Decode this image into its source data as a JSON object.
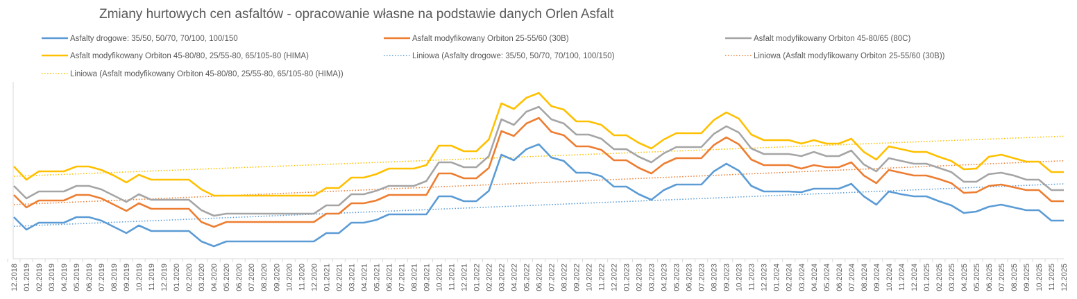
{
  "chart_data": {
    "type": "line",
    "title": "Zmiany hurtowych cen asfaltów - opracowanie własne na podstawie danych Orlen Asfalt",
    "xlabel": "",
    "ylabel": "",
    "y_unit_note": "relative price level (no y-axis shown)",
    "grid": false,
    "legend_placement": "top",
    "categories": [
      "12.2018",
      "01.2019",
      "02.2019",
      "03.2019",
      "04.2019",
      "05.2019",
      "06.2019",
      "07.2019",
      "08.2019",
      "09.2019",
      "10.2019",
      "11.2019",
      "12.2019",
      "01.2020",
      "02.2020",
      "03.2020",
      "04.2020",
      "05.2020",
      "06.2020",
      "07.2020",
      "08.2020",
      "09.2020",
      "10.2020",
      "11.2020",
      "12.2020",
      "01.2021",
      "02.2021",
      "03.2021",
      "04.2021",
      "05.2021",
      "06.2021",
      "07.2021",
      "08.2021",
      "09.2021",
      "10.2021",
      "11.2021",
      "12.2021",
      "01.2022",
      "02.2022",
      "03.2022",
      "04.2022",
      "05.2022",
      "06.2022",
      "07.2022",
      "08.2022",
      "09.2022",
      "10.2022",
      "11.2022",
      "12.2022",
      "01.2023",
      "02.2023",
      "03.2023",
      "04.2023",
      "05.2023",
      "06.2023",
      "07.2023",
      "08.2023",
      "09.2023",
      "10.2023",
      "11.2023",
      "12.2023",
      "01.2024",
      "02.2024",
      "03.2024",
      "04.2024",
      "05.2024",
      "06.2024",
      "07.2024",
      "08.2024",
      "09.2024",
      "10.2024",
      "11.2024",
      "12.2024",
      "01.2025",
      "02.2025",
      "03.2025",
      "04.2025",
      "05.2025",
      "06.2025",
      "07.2025",
      "08.2025",
      "09.2025",
      "10.2025",
      "11.2025",
      "12.2025"
    ],
    "series": [
      {
        "name": "Asfalty drogowe: 35/50, 50/70, 70/100, 100/150",
        "color": "#5B9BD5",
        "style": "solid",
        "y": [
          313,
          331,
          321,
          321,
          321,
          313,
          313,
          318,
          327,
          336,
          325,
          333,
          333,
          333,
          333,
          348,
          355,
          348,
          348,
          348,
          348,
          348,
          348,
          348,
          348,
          336,
          336,
          321,
          321,
          317,
          309,
          309,
          309,
          309,
          283,
          283,
          290,
          290,
          275,
          223,
          231,
          215,
          208,
          227,
          232,
          249,
          249,
          254,
          269,
          269,
          280,
          288,
          274,
          266,
          266,
          266,
          247,
          236,
          246,
          268,
          276,
          276,
          276,
          277,
          272,
          272,
          272,
          265,
          283,
          295,
          276,
          280,
          283,
          283,
          290,
          296,
          307,
          305,
          298,
          295,
          299,
          303,
          303,
          318,
          318
        ]
      },
      {
        "name": "Asfalt modyfikowany Orbiton 25-55/60 (30B)",
        "color": "#ED7D31",
        "style": "solid",
        "y": [
          281,
          299,
          289,
          289,
          289,
          281,
          281,
          286,
          295,
          304,
          293,
          301,
          301,
          301,
          301,
          320,
          327,
          320,
          320,
          320,
          320,
          320,
          320,
          320,
          320,
          308,
          308,
          293,
          293,
          289,
          281,
          281,
          281,
          281,
          250,
          250,
          257,
          257,
          242,
          189,
          196,
          178,
          170,
          190,
          195,
          211,
          211,
          216,
          231,
          231,
          242,
          250,
          236,
          228,
          228,
          228,
          209,
          198,
          208,
          230,
          238,
          238,
          238,
          243,
          238,
          241,
          241,
          234,
          253,
          264,
          245,
          249,
          253,
          253,
          258,
          264,
          278,
          277,
          268,
          266,
          270,
          274,
          274,
          290,
          290
        ]
      },
      {
        "name": "Asfalt modyfikowany Orbiton 45-80/65 (80C)",
        "color": "#A5A5A5",
        "style": "solid",
        "y": [
          268,
          286,
          276,
          276,
          276,
          268,
          268,
          273,
          282,
          291,
          280,
          288,
          288,
          288,
          288,
          303,
          311,
          308,
          308,
          308,
          308,
          308,
          308,
          308,
          308,
          296,
          296,
          280,
          280,
          275,
          268,
          268,
          268,
          261,
          234,
          234,
          241,
          241,
          225,
          172,
          180,
          161,
          154,
          172,
          178,
          194,
          194,
          200,
          215,
          215,
          226,
          234,
          221,
          212,
          212,
          212,
          193,
          182,
          191,
          214,
          222,
          222,
          222,
          225,
          219,
          225,
          225,
          217,
          237,
          247,
          228,
          232,
          236,
          236,
          242,
          248,
          262,
          262,
          251,
          249,
          253,
          259,
          259,
          274,
          274
        ]
      },
      {
        "name": "Asfalt modyfikowany Orbiton 45-80/80, 25/55-80, 65/105-80 (HIMA)",
        "color": "#FFC000",
        "style": "solid",
        "y": [
          240,
          259,
          247,
          247,
          247,
          240,
          240,
          245,
          253,
          263,
          252,
          259,
          259,
          259,
          259,
          273,
          282,
          282,
          282,
          282,
          282,
          282,
          282,
          282,
          282,
          271,
          271,
          256,
          256,
          251,
          243,
          243,
          243,
          238,
          210,
          210,
          218,
          218,
          201,
          149,
          157,
          141,
          134,
          153,
          158,
          175,
          175,
          180,
          195,
          195,
          206,
          214,
          201,
          192,
          192,
          192,
          173,
          162,
          171,
          194,
          202,
          202,
          202,
          207,
          202,
          207,
          207,
          200,
          219,
          230,
          211,
          215,
          219,
          219,
          226,
          232,
          244,
          243,
          226,
          223,
          228,
          233,
          233,
          248,
          248
        ]
      }
    ],
    "trendlines": [
      {
        "name": "Liniowa (Asfalty drogowe: 35/50, 50/70, 70/100, 100/150)",
        "of": 0,
        "color": "#5B9BD5",
        "style": "dotted"
      },
      {
        "name": "Liniowa (Asfalt modyfikowany Orbiton 25-55/60 (30B))",
        "of": 1,
        "color": "#ED7D31",
        "style": "dotted"
      },
      {
        "name": "Liniowa (Asfalt modyfikowany Orbiton 45-80/80, 25/55-80, 65/105-80 (HIMA))",
        "of": 3,
        "color": "#FFC000",
        "style": "dotted"
      }
    ]
  }
}
